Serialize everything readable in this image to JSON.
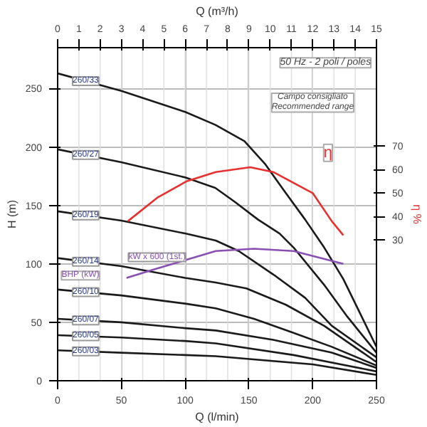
{
  "chart_data": {
    "type": "line",
    "xlabel": "Q (l/min)",
    "x2label": "Q (m³/h)",
    "ylabel": "H (m)",
    "y2label": "η %",
    "xlim": [
      0,
      250
    ],
    "xticks": [
      0,
      50,
      100,
      150,
      200,
      250
    ],
    "x2lim": [
      0,
      15
    ],
    "x2ticks": [
      0,
      1,
      2,
      3,
      4,
      5,
      6,
      7,
      8,
      9,
      10,
      11,
      12,
      13,
      14,
      15
    ],
    "ylim": [
      0,
      285
    ],
    "yticks": [
      0,
      50,
      100,
      150,
      200,
      250
    ],
    "y2lim": [
      -30,
      112
    ],
    "y2ticks": [
      30,
      40,
      50,
      60,
      70
    ],
    "grid": true,
    "marker": "none",
    "line_style": "solid",
    "series": [
      {
        "name": "260/33",
        "color": "#1a1a1a",
        "x": [
          0,
          50,
          100,
          123.6,
          146.5,
          163,
          178.6,
          194,
          209,
          224,
          250
        ],
        "values": [
          263,
          248,
          230,
          219,
          205,
          185,
          161,
          138,
          114,
          87,
          29
        ]
      },
      {
        "name": "260/27",
        "color": "#1a1a1a",
        "x": [
          0,
          50,
          100,
          123.6,
          139,
          157,
          174,
          185,
          209,
          227,
          250
        ],
        "values": [
          198,
          187,
          174,
          165,
          153,
          138,
          126,
          114,
          82,
          55,
          24
        ]
      },
      {
        "name": "260/19",
        "color": "#1a1a1a",
        "x": [
          0,
          50,
          100,
          124,
          142,
          169,
          194,
          215,
          250
        ],
        "values": [
          145,
          137,
          126,
          120,
          111,
          91,
          71,
          47,
          20
        ]
      },
      {
        "name": "260/14",
        "color": "#1a1a1a",
        "x": [
          0,
          50,
          100,
          124,
          148,
          179,
          209,
          250
        ],
        "values": [
          105,
          98,
          88,
          84,
          79,
          65,
          47,
          16
        ]
      },
      {
        "name": "260/10",
        "color": "#1a1a1a",
        "x": [
          0,
          50,
          100,
          124,
          154,
          185,
          215,
          250
        ],
        "values": [
          78,
          73,
          66,
          62,
          53,
          41,
          29,
          13
        ]
      },
      {
        "name": "260/07",
        "color": "#1a1a1a",
        "x": [
          0,
          50,
          100,
          124,
          169,
          215,
          250
        ],
        "values": [
          53,
          50,
          45,
          43,
          35,
          24,
          11
        ]
      },
      {
        "name": "260/05",
        "color": "#1a1a1a",
        "x": [
          0,
          50,
          100,
          124,
          185,
          250
        ],
        "values": [
          39,
          37,
          34,
          32,
          22,
          8
        ]
      },
      {
        "name": "260/03",
        "color": "#1a1a1a",
        "x": [
          0,
          50,
          100,
          124,
          200,
          250
        ],
        "values": [
          26,
          24,
          22,
          21,
          14,
          5
        ]
      },
      {
        "color": "#e8312f",
        "axis": "y2",
        "x": [
          55,
          78,
          101,
          124,
          151,
          169,
          200,
          215,
          224
        ],
        "values": [
          38,
          48,
          55,
          59,
          61,
          59,
          50,
          38,
          32
        ]
      },
      {
        "name": "kW x 600 (1st.)",
        "color": "#8a4fb5",
        "x": [
          54,
          78,
          124,
          154,
          185,
          224
        ],
        "values": [
          88,
          96,
          111,
          113,
          111,
          100
        ]
      }
    ],
    "annotations": [
      "50 Hz - 2 poli / poles",
      "Campo consigliato\nRecommended range",
      "η",
      "BHP (kW)"
    ]
  }
}
